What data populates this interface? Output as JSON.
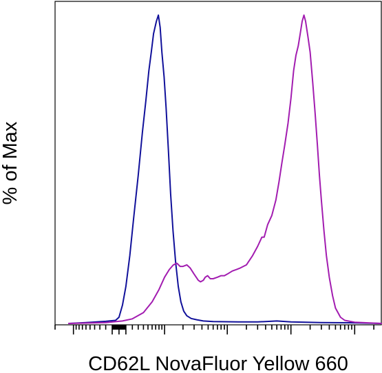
{
  "chart_data": {
    "type": "line",
    "title": "",
    "xlabel": "CD62L NovaFluor Yellow 660",
    "ylabel": "% of Max",
    "x_scale": "biexponential",
    "ylim": [
      0,
      100
    ],
    "grid": false,
    "legend": "none",
    "series": [
      {
        "color": "#10109a",
        "points": [
          [
            -120,
            0
          ],
          [
            -60,
            0.3
          ],
          [
            -20,
            0.7
          ],
          [
            -5,
            1
          ],
          [
            0,
            2
          ],
          [
            5,
            6
          ],
          [
            10,
            12
          ],
          [
            16,
            22
          ],
          [
            22,
            34
          ],
          [
            30,
            48
          ],
          [
            38,
            62
          ],
          [
            45,
            72
          ],
          [
            52,
            82
          ],
          [
            58,
            88
          ],
          [
            64,
            94
          ],
          [
            72,
            98
          ],
          [
            78,
            100
          ],
          [
            84,
            96
          ],
          [
            90,
            88
          ],
          [
            98,
            80
          ],
          [
            106,
            70
          ],
          [
            116,
            56
          ],
          [
            126,
            42
          ],
          [
            138,
            30
          ],
          [
            152,
            20
          ],
          [
            168,
            12
          ],
          [
            185,
            7
          ],
          [
            205,
            4
          ],
          [
            230,
            2.5
          ],
          [
            270,
            1.6
          ],
          [
            330,
            1.2
          ],
          [
            420,
            0.8
          ],
          [
            600,
            0.6
          ],
          [
            1500,
            0.5
          ],
          [
            3000,
            0.5
          ],
          [
            6000,
            0.8
          ],
          [
            10000,
            0.5
          ],
          [
            30000,
            0.3
          ],
          [
            100000,
            0.2
          ],
          [
            262143,
            0
          ]
        ]
      },
      {
        "color": "#a21cb0",
        "points": [
          [
            -120,
            0
          ],
          [
            -20,
            0.3
          ],
          [
            5,
            0.8
          ],
          [
            20,
            1.5
          ],
          [
            40,
            3.5
          ],
          [
            60,
            7
          ],
          [
            80,
            11
          ],
          [
            100,
            15
          ],
          [
            120,
            17.5
          ],
          [
            140,
            19
          ],
          [
            160,
            19.5
          ],
          [
            180,
            18.5
          ],
          [
            200,
            18.5
          ],
          [
            230,
            19
          ],
          [
            260,
            18
          ],
          [
            300,
            16
          ],
          [
            350,
            14
          ],
          [
            380,
            13.5
          ],
          [
            420,
            14
          ],
          [
            450,
            15
          ],
          [
            490,
            15.5
          ],
          [
            540,
            14.5
          ],
          [
            600,
            14.5
          ],
          [
            700,
            15
          ],
          [
            800,
            15.5
          ],
          [
            900,
            15.5
          ],
          [
            1000,
            16
          ],
          [
            1200,
            17
          ],
          [
            1400,
            17.5
          ],
          [
            1600,
            18
          ],
          [
            2000,
            19
          ],
          [
            2500,
            22
          ],
          [
            3000,
            25
          ],
          [
            3500,
            28
          ],
          [
            3800,
            28
          ],
          [
            4300,
            32
          ],
          [
            5000,
            35
          ],
          [
            5800,
            40
          ],
          [
            6500,
            46
          ],
          [
            7200,
            52
          ],
          [
            8000,
            58
          ],
          [
            9000,
            65
          ],
          [
            10000,
            73
          ],
          [
            11000,
            82
          ],
          [
            12000,
            87
          ],
          [
            13000,
            90
          ],
          [
            14000,
            94
          ],
          [
            15000,
            98
          ],
          [
            16000,
            100
          ],
          [
            17000,
            98
          ],
          [
            18500,
            93
          ],
          [
            20000,
            88
          ],
          [
            22000,
            78
          ],
          [
            24000,
            68
          ],
          [
            26000,
            58
          ],
          [
            28000,
            48
          ],
          [
            30000,
            40
          ],
          [
            33000,
            30
          ],
          [
            36000,
            22
          ],
          [
            40000,
            15
          ],
          [
            45000,
            9
          ],
          [
            50000,
            5
          ],
          [
            60000,
            2
          ],
          [
            70000,
            1
          ],
          [
            100000,
            0.4
          ],
          [
            262143,
            0
          ]
        ]
      }
    ]
  }
}
